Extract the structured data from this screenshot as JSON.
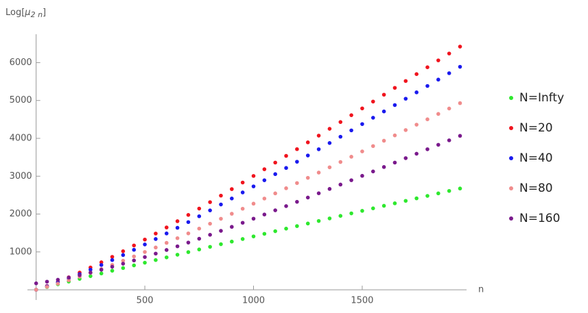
{
  "chart_data": {
    "type": "scatter",
    "ylabel": {
      "prefix": "Log[",
      "symbol": "μ",
      "sub": "2 n",
      "suffix": "]"
    },
    "xlabel": "n",
    "x": [
      0,
      50,
      100,
      150,
      200,
      250,
      300,
      350,
      400,
      450,
      500,
      550,
      600,
      650,
      700,
      750,
      800,
      850,
      900,
      950,
      1000,
      1050,
      1100,
      1150,
      1200,
      1250,
      1300,
      1350,
      1400,
      1450,
      1500,
      1550,
      1600,
      1650,
      1700,
      1750,
      1800,
      1850,
      1900,
      1950
    ],
    "series": [
      {
        "name": "N=Infty",
        "color": "#2ee82e",
        "values": [
          0,
          72,
          145,
          217,
          288,
          360,
          431,
          503,
          574,
          644,
          715,
          785,
          856,
          926,
          995,
          1065,
          1134,
          1204,
          1273,
          1341,
          1410,
          1478,
          1547,
          1615,
          1682,
          1750,
          1817,
          1885,
          1952,
          2018,
          2085,
          2151,
          2218,
          2284,
          2349,
          2415,
          2480,
          2546,
          2611,
          2675
        ]
      },
      {
        "name": "N=20",
        "color": "#f0141e",
        "values": [
          0,
          101,
          210,
          329,
          454,
          588,
          726,
          870,
          1018,
          1170,
          1326,
          1485,
          1646,
          1811,
          1977,
          2145,
          2315,
          2487,
          2659,
          2833,
          3007,
          3184,
          3360,
          3537,
          3715,
          3894,
          4072,
          4252,
          4431,
          4612,
          4791,
          4972,
          5153,
          5334,
          5515,
          5697,
          5878,
          6060,
          6241,
          6423
        ]
      },
      {
        "name": "N=40",
        "color": "#1a1aee",
        "values": [
          0,
          91,
          191,
          297,
          411,
          530,
          655,
          785,
          918,
          1056,
          1197,
          1341,
          1488,
          1637,
          1788,
          1942,
          2097,
          2253,
          2411,
          2571,
          2731,
          2893,
          3055,
          3218,
          3382,
          3547,
          3712,
          3877,
          4043,
          4210,
          4377,
          4544,
          4711,
          4879,
          5047,
          5215,
          5384,
          5552,
          5721,
          5890
        ]
      },
      {
        "name": "N=80",
        "color": "#f08c8c",
        "values": [
          0,
          77,
          161,
          251,
          345,
          445,
          548,
          656,
          767,
          881,
          998,
          1117,
          1239,
          1363,
          1489,
          1616,
          1745,
          1876,
          2008,
          2141,
          2275,
          2410,
          2546,
          2682,
          2819,
          2957,
          3096,
          3235,
          3375,
          3514,
          3655,
          3796,
          3937,
          4078,
          4219,
          4361,
          4503,
          4645,
          4788,
          4930
        ]
      },
      {
        "name": "N=160",
        "color": "#7a1a8c",
        "values": [
          170,
          214,
          265,
          323,
          386,
          455,
          529,
          607,
          689,
          775,
          864,
          956,
          1051,
          1148,
          1247,
          1348,
          1452,
          1556,
          1662,
          1770,
          1878,
          1988,
          2099,
          2210,
          2323,
          2436,
          2549,
          2664,
          2779,
          2894,
          3010,
          3126,
          3243,
          3360,
          3477,
          3594,
          3712,
          3830,
          3948,
          4066
        ]
      }
    ],
    "xlim": [
      -40,
      1980
    ],
    "ylim": [
      -270,
      6750
    ],
    "xticks": [
      500,
      1000,
      1500
    ],
    "yticks": [
      1000,
      2000,
      3000,
      4000,
      5000,
      6000
    ],
    "grid": false,
    "legend": "right"
  }
}
